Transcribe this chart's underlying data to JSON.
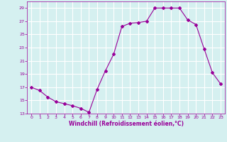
{
  "x": [
    0,
    1,
    2,
    3,
    4,
    5,
    6,
    7,
    8,
    9,
    10,
    11,
    12,
    13,
    14,
    15,
    16,
    17,
    18,
    19,
    20,
    21,
    22,
    23
  ],
  "y": [
    17,
    16.5,
    15.5,
    14.8,
    14.5,
    14.2,
    13.8,
    13.2,
    16.7,
    19.5,
    22.0,
    26.2,
    26.7,
    26.8,
    27.0,
    29.0,
    29.0,
    29.0,
    29.0,
    27.2,
    26.5,
    22.8,
    19.2,
    17.5
  ],
  "line_color": "#990099",
  "marker": "D",
  "marker_size": 2,
  "bg_color": "#d5f0f0",
  "grid_color": "#ffffff",
  "xlabel": "Windchill (Refroidissement éolien,°C)",
  "xlabel_color": "#990099",
  "tick_color": "#990099",
  "ylim": [
    13,
    30
  ],
  "xlim": [
    -0.5,
    23.5
  ],
  "yticks": [
    13,
    15,
    17,
    19,
    21,
    23,
    25,
    27,
    29
  ],
  "xticks": [
    0,
    1,
    2,
    3,
    4,
    5,
    6,
    7,
    8,
    9,
    10,
    11,
    12,
    13,
    14,
    15,
    16,
    17,
    18,
    19,
    20,
    21,
    22,
    23
  ]
}
